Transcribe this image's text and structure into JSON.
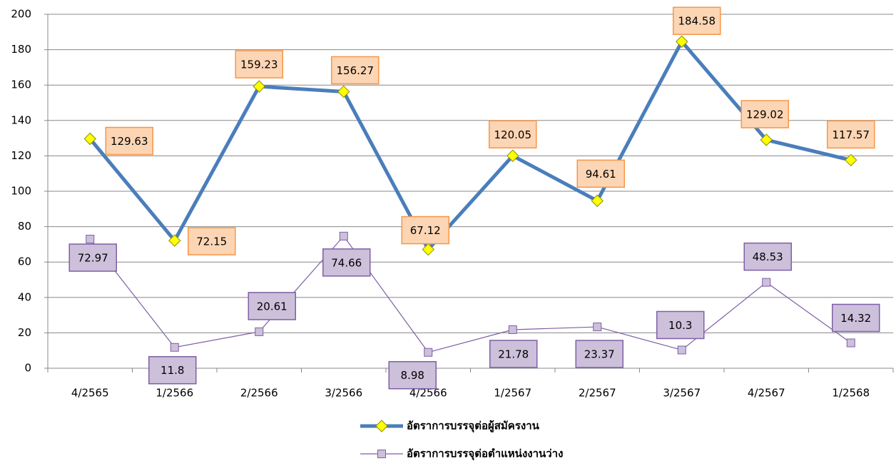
{
  "chart_data": {
    "type": "line",
    "categories": [
      "4/2565",
      "1/2566",
      "2/2566",
      "3/2566",
      "4/2566",
      "1/2567",
      "2/2567",
      "3/2567",
      "4/2567",
      "1/2568"
    ],
    "series": [
      {
        "name": "อัตราการบรรจุต่อผู้สมัครงาน",
        "color": "#4a7ebb",
        "marker_color": "#ffff00",
        "label_color": "#fcd5b4",
        "label_border": "#f79646",
        "values": [
          129.63,
          72.15,
          159.23,
          156.27,
          67.12,
          120.05,
          94.61,
          184.58,
          129.02,
          117.57
        ]
      },
      {
        "name": "อัตราการบรรจุต่อตำแหน่งงานว่าง",
        "color": "#7f5fa6",
        "marker_color": "#ccc0da",
        "label_color": "#ccc0da",
        "label_border": "#7f5fa6",
        "values": [
          72.97,
          11.8,
          20.61,
          74.66,
          8.98,
          21.78,
          23.37,
          10.3,
          48.53,
          14.32
        ]
      }
    ],
    "ylim": [
      0,
      200
    ],
    "yticks": [
      0,
      20,
      40,
      60,
      80,
      100,
      120,
      140,
      160,
      180,
      200
    ],
    "grid": true,
    "legend": "bottom"
  }
}
